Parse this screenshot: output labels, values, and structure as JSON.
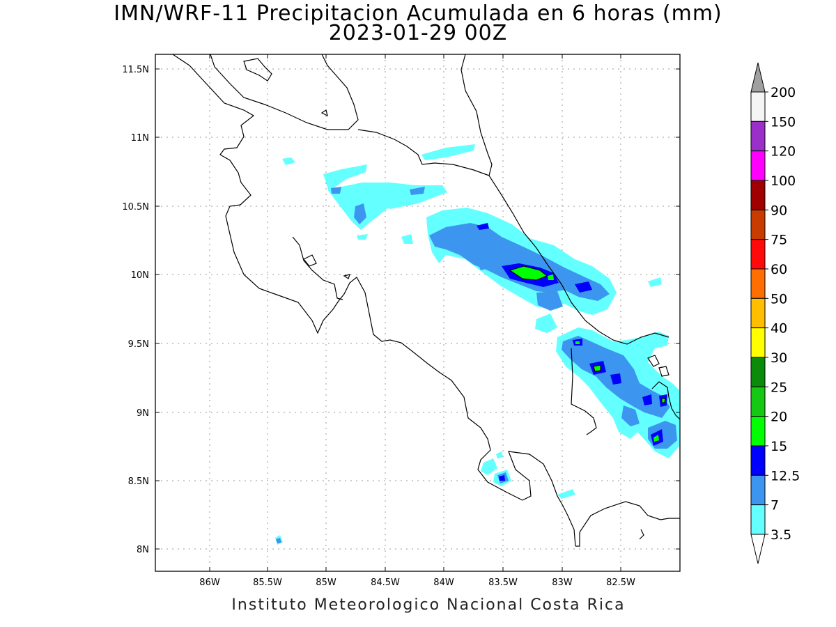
{
  "header": {
    "title": "IMN/WRF-11 Precipitacion Acumulada en 6 horas (mm)",
    "subtitle": "2023-01-29 00Z"
  },
  "footer": {
    "credit": "Instituto Meteorologico Nacional Costa Rica"
  },
  "map": {
    "x_ticks": [
      "86W",
      "85.5W",
      "85W",
      "84.5W",
      "84W",
      "83.5W",
      "83W",
      "82.5W"
    ],
    "y_ticks": [
      "11.5N",
      "11N",
      "10.5N",
      "10N",
      "9.5N",
      "9N",
      "8.5N",
      "8N"
    ],
    "lon_range": [
      -86.45,
      -82.05
    ],
    "lat_range": [
      7.85,
      11.6
    ]
  },
  "colorbar": {
    "labels": [
      "200",
      "150",
      "120",
      "100",
      "90",
      "75",
      "60",
      "50",
      "40",
      "30",
      "25",
      "20",
      "15",
      "12.5",
      "7",
      "3.5"
    ],
    "colors_top_to_bottom": [
      "#f5f5f5",
      "#9a30c8",
      "#ff00ff",
      "#a00000",
      "#c83c00",
      "#ff0a0a",
      "#ff6e00",
      "#ffbe00",
      "#ffff00",
      "#0a8c0a",
      "#14c814",
      "#00ff00",
      "#0000ff",
      "#3c96f0",
      "#64ffff"
    ],
    "over_color": "#a0a0a0",
    "under_color": "#ffffff"
  }
}
